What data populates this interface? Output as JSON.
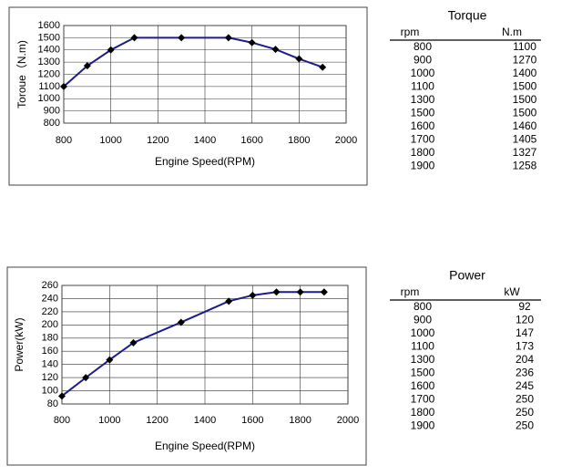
{
  "chart_data": [
    {
      "type": "line",
      "x_label": "Engine Speed(RPM)",
      "y_label": "Toroue（N.m)",
      "x": [
        800,
        900,
        1000,
        1100,
        1300,
        1500,
        1600,
        1700,
        1800,
        1900
      ],
      "values": [
        1100,
        1270,
        1400,
        1500,
        1500,
        1500,
        1460,
        1405,
        1327,
        1258
      ],
      "color": "#1c1c8a",
      "marker_color": "#000000",
      "xlim": [
        800,
        2000
      ],
      "xticks": [
        800,
        1000,
        1200,
        1400,
        1600,
        1800,
        2000
      ],
      "ylim": [
        800,
        1600
      ],
      "yticks": [
        800,
        900,
        1000,
        1100,
        1200,
        1300,
        1400,
        1500,
        1600
      ],
      "grid": true
    },
    {
      "type": "line",
      "x_label": "Engine Speed(RPM)",
      "y_label": "Power(kW)",
      "x": [
        800,
        900,
        1000,
        1100,
        1300,
        1500,
        1600,
        1700,
        1800,
        1900
      ],
      "values": [
        92,
        120,
        147,
        173,
        204,
        236,
        245,
        250,
        250,
        250
      ],
      "color": "#1c1c8a",
      "marker_color": "#000000",
      "xlim": [
        800,
        2000
      ],
      "xticks": [
        800,
        1000,
        1200,
        1400,
        1600,
        1800,
        2000
      ],
      "ylim": [
        80,
        260
      ],
      "yticks": [
        80,
        100,
        120,
        140,
        160,
        180,
        200,
        220,
        240,
        260
      ],
      "grid": true
    }
  ],
  "tables": [
    {
      "title": "Torque",
      "columns": [
        "rpm",
        "N.m"
      ],
      "rows": [
        [
          "800",
          "1100"
        ],
        [
          "900",
          "1270"
        ],
        [
          "1000",
          "1400"
        ],
        [
          "1100",
          "1500"
        ],
        [
          "1300",
          "1500"
        ],
        [
          "1500",
          "1500"
        ],
        [
          "1600",
          "1460"
        ],
        [
          "1700",
          "1405"
        ],
        [
          "1800",
          "1327"
        ],
        [
          "1900",
          "1258"
        ]
      ]
    },
    {
      "title": "Power",
      "columns": [
        "rpm",
        "kW"
      ],
      "rows": [
        [
          "800",
          "92"
        ],
        [
          "900",
          "120"
        ],
        [
          "1000",
          "147"
        ],
        [
          "1100",
          "173"
        ],
        [
          "1300",
          "204"
        ],
        [
          "1500",
          "236"
        ],
        [
          "1600",
          "245"
        ],
        [
          "1700",
          "250"
        ],
        [
          "1800",
          "250"
        ],
        [
          "1900",
          "250"
        ]
      ]
    }
  ]
}
